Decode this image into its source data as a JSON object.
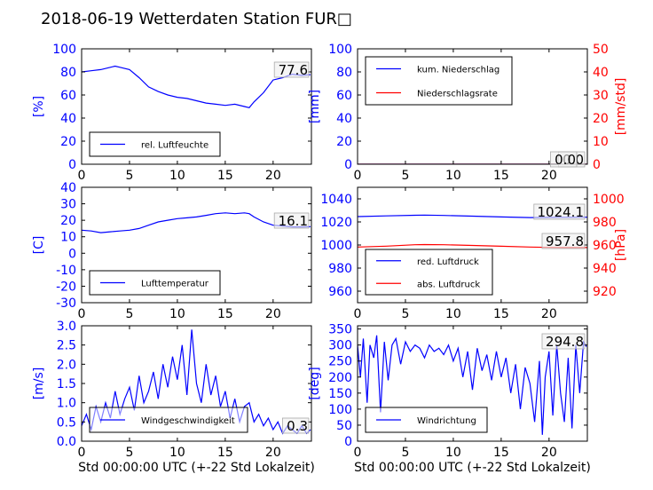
{
  "figure_title": "2018-06-19 Wetterdaten Station FUR□",
  "colors": {
    "blue": "#0000ff",
    "red": "#ff0000",
    "black": "#000000"
  },
  "chart_data": [
    {
      "id": "humidity",
      "type": "line",
      "ylabel": "[%]",
      "ylim": [
        0,
        100
      ],
      "yticks": [
        0,
        20,
        40,
        60,
        80,
        100
      ],
      "xlim": [
        0,
        24
      ],
      "xticks": [
        0,
        5,
        10,
        15,
        20
      ],
      "xlabel": "",
      "legend_position": "lower-left",
      "series": [
        {
          "name": "rel. Luftfeuchte",
          "color": "#0000ff",
          "x": [
            0,
            1,
            2,
            3,
            3.5,
            4,
            5,
            6,
            7,
            8,
            9,
            10,
            11,
            12,
            13,
            14,
            15,
            16,
            17,
            17.5,
            18,
            19,
            20,
            21,
            22,
            23,
            23.9
          ],
          "y": [
            80,
            81,
            82,
            84,
            85,
            84,
            82,
            75,
            67,
            63,
            60,
            58,
            57,
            55,
            53,
            52,
            51,
            52,
            50,
            49,
            54,
            62,
            73,
            75,
            78,
            77,
            77.6
          ]
        }
      ],
      "annotations": [
        "77.6"
      ]
    },
    {
      "id": "precipitation",
      "type": "line",
      "ylabel": "[mm]",
      "ylim": [
        0,
        100
      ],
      "yticks": [
        0,
        20,
        40,
        60,
        80,
        100
      ],
      "y2label": "[mm/std]",
      "y2lim": [
        0,
        50
      ],
      "y2ticks": [
        0,
        10,
        20,
        30,
        40,
        50
      ],
      "xlim": [
        0,
        24
      ],
      "xticks": [
        0,
        5,
        10,
        15,
        20
      ],
      "xlabel": "",
      "legend_position": "upper-left",
      "series": [
        {
          "name": "kum. Niederschlag",
          "color": "#0000ff",
          "axis": "left",
          "x": [
            0,
            24
          ],
          "y": [
            0,
            0
          ]
        },
        {
          "name": "Niederschlagsrate",
          "color": "#ff0000",
          "axis": "right",
          "x": [
            0,
            24
          ],
          "y": [
            0,
            0
          ]
        }
      ],
      "annotations": [
        "0.0",
        "0.0"
      ]
    },
    {
      "id": "temperature",
      "type": "line",
      "ylabel": "[C]",
      "ylim": [
        -30,
        40
      ],
      "yticks": [
        -30,
        -20,
        -10,
        0,
        10,
        20,
        30,
        40
      ],
      "xlim": [
        0,
        24
      ],
      "xticks": [
        0,
        5,
        10,
        15,
        20
      ],
      "xlabel": "",
      "legend_position": "lower-left",
      "series": [
        {
          "name": "Lufttemperatur",
          "color": "#0000ff",
          "x": [
            0,
            1,
            2,
            3,
            4,
            5,
            6,
            7,
            8,
            9,
            10,
            11,
            12,
            13,
            14,
            15,
            16,
            17,
            17.5,
            18,
            19,
            20,
            21,
            22,
            23,
            23.9
          ],
          "y": [
            14,
            13.5,
            12.5,
            13,
            13.5,
            14,
            15,
            17,
            19,
            20,
            21,
            21.5,
            22,
            23,
            24,
            24.5,
            24,
            24.5,
            24,
            22,
            19,
            17,
            16.5,
            16,
            16,
            16.1
          ]
        }
      ],
      "annotations": [
        "16.1"
      ]
    },
    {
      "id": "pressure",
      "type": "line",
      "ylabel": "",
      "ylim": [
        950,
        1050
      ],
      "yticks": [
        960,
        980,
        1000,
        1020,
        1040
      ],
      "y2label": "[hPa]",
      "y2lim": [
        910,
        1010
      ],
      "y2ticks": [
        920,
        940,
        960,
        980,
        1000
      ],
      "xlim": [
        0,
        24
      ],
      "xticks": [
        0,
        5,
        10,
        15,
        20
      ],
      "xlabel": "",
      "legend_position": "lower-left",
      "series": [
        {
          "name": "red. Luftdruck",
          "color": "#0000ff",
          "axis": "left",
          "x": [
            0,
            3,
            6,
            7,
            9,
            12,
            15,
            18,
            20,
            22,
            24
          ],
          "y": [
            1024.6,
            1025.2,
            1025.8,
            1025.9,
            1025.6,
            1025.0,
            1024.3,
            1023.8,
            1023.9,
            1024.0,
            1024.1
          ]
        },
        {
          "name": "abs. Luftdruck",
          "color": "#ff0000",
          "axis": "right",
          "x": [
            0,
            3,
            6,
            7,
            9,
            12,
            15,
            18,
            20,
            22,
            24
          ],
          "y": [
            958.2,
            959.0,
            960.2,
            960.4,
            960.2,
            959.6,
            958.9,
            958.2,
            957.9,
            957.8,
            957.8
          ]
        }
      ],
      "annotations": [
        "1024.1",
        "957.8"
      ]
    },
    {
      "id": "windspeed",
      "type": "line",
      "ylabel": "[m/s]",
      "ylim": [
        0,
        3.0
      ],
      "yticks": [
        0,
        0.5,
        1.0,
        1.5,
        2.0,
        2.5,
        3.0
      ],
      "ytick_labels": [
        "0.0",
        "0.5",
        "1.0",
        "1.5",
        "2.0",
        "2.5",
        "3.0"
      ],
      "xlim": [
        0,
        24
      ],
      "xticks": [
        0,
        5,
        10,
        15,
        20
      ],
      "xlabel": "Std 00:00:00 UTC (+-22 Std Lokalzeit)",
      "legend_position": "lower-left",
      "series": [
        {
          "name": "Windgeschwindigkeit",
          "color": "#0000ff",
          "x": [
            0,
            0.5,
            1,
            1.5,
            2,
            2.5,
            3,
            3.5,
            4,
            4.5,
            5,
            5.5,
            6,
            6.5,
            7,
            7.5,
            8,
            8.5,
            9,
            9.5,
            10,
            10.5,
            11,
            11.5,
            12,
            12.5,
            13,
            13.5,
            14,
            14.5,
            15,
            15.5,
            16,
            16.5,
            17,
            17.5,
            18,
            18.5,
            19,
            19.5,
            20,
            20.5,
            21,
            21.5,
            22,
            22.5,
            23,
            23.5,
            23.9
          ],
          "y": [
            0.4,
            0.7,
            0.3,
            0.9,
            0.5,
            1.0,
            0.6,
            1.3,
            0.7,
            1.1,
            1.4,
            0.8,
            1.7,
            1.0,
            1.3,
            1.8,
            1.1,
            2.0,
            1.4,
            2.2,
            1.6,
            2.5,
            1.2,
            2.9,
            1.5,
            1.0,
            2.0,
            1.2,
            1.7,
            0.9,
            1.3,
            0.6,
            1.1,
            0.5,
            0.9,
            1.0,
            0.5,
            0.7,
            0.4,
            0.6,
            0.3,
            0.5,
            0.2,
            0.4,
            0.3,
            0.2,
            0.4,
            0.2,
            0.3
          ]
        }
      ],
      "annotations": [
        "0.3"
      ]
    },
    {
      "id": "winddirection",
      "type": "line",
      "ylabel": "[deg]",
      "ylim": [
        0,
        360
      ],
      "yticks": [
        0,
        50,
        100,
        150,
        200,
        250,
        300,
        350
      ],
      "xlim": [
        0,
        24
      ],
      "xticks": [
        0,
        5,
        10,
        15,
        20
      ],
      "xlabel": "Std 00:00:00 UTC (+-22 Std Lokalzeit)",
      "legend_position": "lower-left",
      "series": [
        {
          "name": "Windrichtung",
          "color": "#0000ff",
          "x": [
            0,
            0.3,
            0.6,
            1,
            1.3,
            1.7,
            2,
            2.4,
            2.8,
            3.2,
            3.6,
            4,
            4.5,
            5,
            5.5,
            6,
            6.5,
            7,
            7.5,
            8,
            8.5,
            9,
            9.5,
            10,
            10.5,
            11,
            11.5,
            12,
            12.5,
            13,
            13.5,
            14,
            14.5,
            15,
            15.5,
            16,
            16.5,
            17,
            17.5,
            18,
            18.5,
            19,
            19.3,
            19.6,
            20,
            20.4,
            20.8,
            21.2,
            21.6,
            22,
            22.4,
            22.8,
            23.2,
            23.6,
            23.9
          ],
          "y": [
            300,
            200,
            320,
            120,
            300,
            260,
            330,
            90,
            310,
            190,
            300,
            320,
            240,
            310,
            280,
            300,
            290,
            260,
            300,
            280,
            290,
            270,
            300,
            250,
            290,
            200,
            280,
            160,
            290,
            220,
            270,
            190,
            280,
            200,
            260,
            150,
            240,
            100,
            230,
            180,
            60,
            250,
            20,
            200,
            280,
            80,
            300,
            150,
            60,
            260,
            40,
            300,
            150,
            310,
            294.8
          ]
        }
      ],
      "annotations": [
        "294.8"
      ]
    }
  ]
}
